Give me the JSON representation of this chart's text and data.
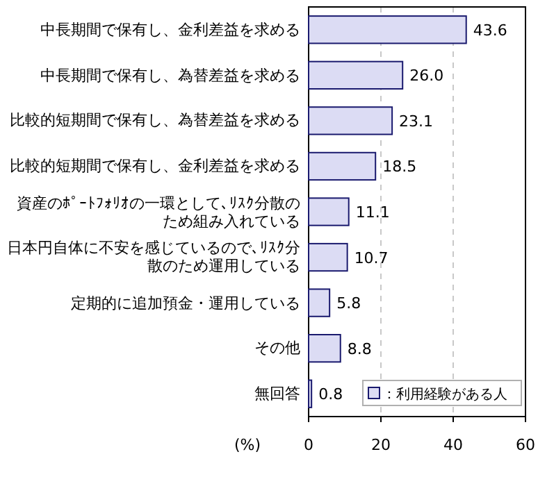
{
  "chart_data": {
    "type": "bar",
    "orientation": "horizontal",
    "categories": [
      "中長期間で保有し、金利差益を求める",
      "中長期間で保有し、為替差益を求める",
      "比較的短期間で保有し、為替差益を求める",
      "比較的短期間で保有し、金利差益を求める",
      "資産のﾎﾟｰﾄﾌｫﾘｵの一環として､ﾘｽｸ分散のため組み入れている",
      "日本円自体に不安を感じているので､ﾘｽｸ分散のため運用している",
      "定期的に追加預金・運用している",
      "その他",
      "無回答"
    ],
    "series": [
      {
        "name": "：利用経験がある人",
        "color": "#dcdcf4",
        "values": [
          43.6,
          26.0,
          23.1,
          18.5,
          11.1,
          10.7,
          5.8,
          8.8,
          0.8
        ],
        "value_labels": [
          "43.6",
          "26.0",
          "23.1",
          "18.5",
          "11.1",
          "10.7",
          "5.8",
          "8.8",
          "0.8"
        ]
      }
    ],
    "xlabel": "(%)",
    "xlim": [
      0,
      60
    ],
    "xticks": [
      0,
      20,
      40,
      60
    ],
    "grid": "x",
    "legend": "bottom right"
  }
}
